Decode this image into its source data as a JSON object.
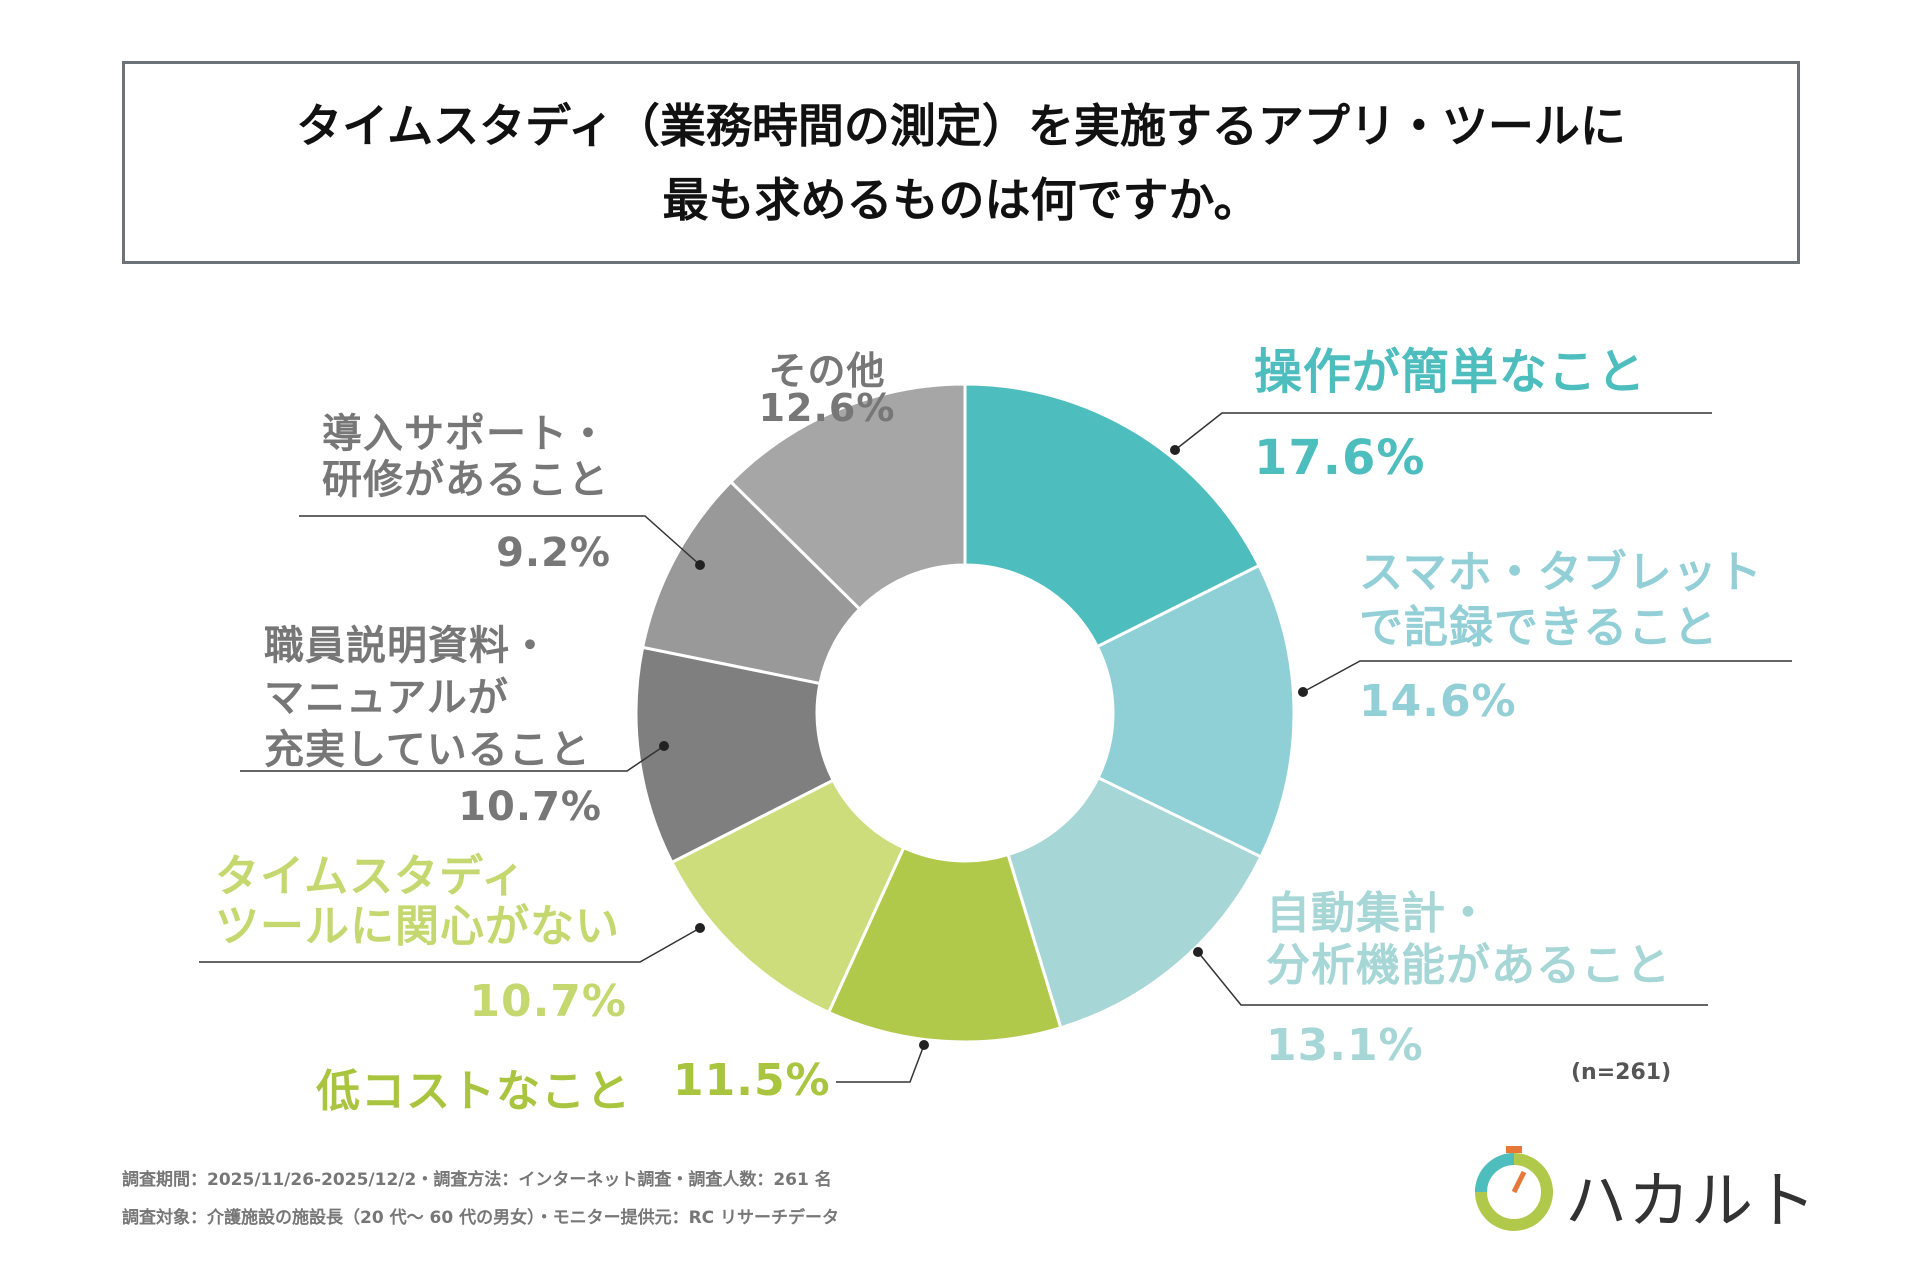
{
  "chart_data": {
    "type": "pie",
    "title": "タイムスタディ（業務時間の測定）を実施するアプリ・ツールに\n最も求めるものは何ですか。",
    "categories": [
      "操作が簡単なこと",
      "スマホ・タブレット\nで記録できること",
      "自動集計・\n分析機能があること",
      "低コストなこと",
      "タイムスタディ\nツールに関心がない",
      "職員説明資料・\nマニュアルが\n充実していること",
      "導入サポート・\n研修があること",
      "その他"
    ],
    "values": [
      17.6,
      14.6,
      13.1,
      11.5,
      10.7,
      10.7,
      9.2,
      12.6
    ],
    "value_labels": [
      "17.6%",
      "14.6%",
      "13.1%",
      "11.5%",
      "10.7%",
      "10.7%",
      "9.2%",
      "12.6%"
    ],
    "colors": [
      "#4dbdbe",
      "#8fd0d6",
      "#a7d6d6",
      "#b1c94b",
      "#cddd7c",
      "#7f7f7f",
      "#999999",
      "#a6a6a6"
    ],
    "note": "(n=261)"
  },
  "footer": [
    "調査期間：2025/11/26-2025/12/2・調査方法：インターネット調査・調査人数：261 名",
    "調査対象：介護施設の施設長（20 代～ 60 代の男女）・モニター提供元：RC リサーチデータ"
  ],
  "logo": "ハカルト"
}
